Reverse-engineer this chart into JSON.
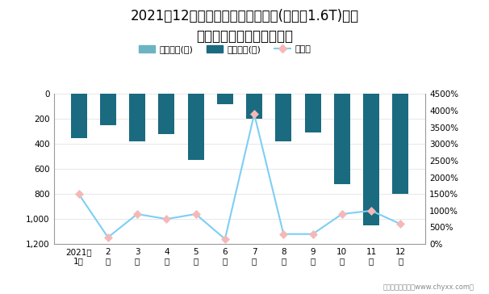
{
  "title": "2021年12月索纳塔旗下最畅销轿车(索纳塔1.6T)近一\n年库存情况及产销率统计图",
  "months": [
    "2021年\n1月",
    "2\n月",
    "3\n月",
    "4\n月",
    "5\n月",
    "6\n月",
    "7\n月",
    "8\n月",
    "9\n月",
    "10\n月",
    "11\n月",
    "12\n月"
  ],
  "jiiya_values": [
    0,
    0,
    0,
    0,
    0,
    0,
    0,
    0,
    0,
    0,
    0,
    0
  ],
  "qingcang_values": [
    -350,
    -250,
    -380,
    -320,
    -530,
    -80,
    -200,
    -380,
    -310,
    -720,
    -1050,
    -800
  ],
  "chanxiao_rate": [
    1500,
    200,
    900,
    750,
    900,
    150,
    3900,
    300,
    300,
    900,
    1000,
    600
  ],
  "jiiya_color": "#6db3c3",
  "qingcang_color": "#1a6b7f",
  "chanxiao_color": "#7ecef4",
  "chanxiao_marker_facecolor": "#f4b8b8",
  "chanxiao_marker_edgecolor": "#f4b8b8",
  "legend_labels": [
    "积压库存(辆)",
    "清仓库存(辆)",
    "产销率"
  ],
  "footer": "制图：智研咨询（www.chyxx.com）",
  "bg_color": "#ffffff",
  "title_fontsize": 12,
  "bar_width": 0.55
}
